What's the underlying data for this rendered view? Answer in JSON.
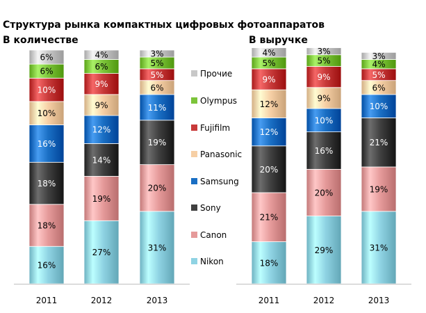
{
  "title": "Структура рынка компактных цифровых фотоаппаратов",
  "chart_data": [
    {
      "type": "bar",
      "stacked": true,
      "subtitle": "В количестве",
      "categories": [
        "2011",
        "2012",
        "2013"
      ],
      "series": [
        {
          "name": "Nikon",
          "values": [
            16,
            27,
            31
          ]
        },
        {
          "name": "Canon",
          "values": [
            18,
            19,
            20
          ]
        },
        {
          "name": "Sony",
          "values": [
            18,
            14,
            19
          ]
        },
        {
          "name": "Samsung",
          "values": [
            16,
            12,
            11
          ]
        },
        {
          "name": "Panasonic",
          "values": [
            10,
            9,
            6
          ]
        },
        {
          "name": "Fujifilm",
          "values": [
            10,
            9,
            5
          ]
        },
        {
          "name": "Olympus",
          "values": [
            6,
            6,
            5
          ]
        },
        {
          "name": "Прочие",
          "values": [
            6,
            4,
            3
          ]
        }
      ],
      "ylim": [
        0,
        100
      ],
      "grid": false
    },
    {
      "type": "bar",
      "stacked": true,
      "subtitle": "В выручке",
      "categories": [
        "2011",
        "2012",
        "2013"
      ],
      "series": [
        {
          "name": "Nikon",
          "values": [
            18,
            29,
            31
          ]
        },
        {
          "name": "Canon",
          "values": [
            21,
            20,
            19
          ]
        },
        {
          "name": "Sony",
          "values": [
            20,
            16,
            21
          ]
        },
        {
          "name": "Samsung",
          "values": [
            12,
            10,
            10
          ]
        },
        {
          "name": "Panasonic",
          "values": [
            12,
            9,
            6
          ]
        },
        {
          "name": "Fujifilm",
          "values": [
            9,
            9,
            5
          ]
        },
        {
          "name": "Olympus",
          "values": [
            5,
            5,
            4
          ]
        },
        {
          "name": "Прочие",
          "values": [
            4,
            3,
            3
          ]
        }
      ],
      "ylim": [
        0,
        100
      ],
      "grid": false
    }
  ],
  "legend": {
    "placement": "center",
    "items": [
      "Прочие",
      "Olympus",
      "Fujifilm",
      "Panasonic",
      "Samsung",
      "Sony",
      "Canon",
      "Nikon"
    ]
  },
  "series_colors": {
    "Nikon": "#8fd3e3",
    "Canon": "#e59a9a",
    "Sony": "#404040",
    "Samsung": "#1a6fc4",
    "Panasonic": "#f6cfa5",
    "Fujifilm": "#c83a3a",
    "Olympus": "#7cc43a",
    "Прочие": "#c8c8c8"
  },
  "label_colors": {
    "Nikon": "#000000",
    "Canon": "#000000",
    "Sony": "#ffffff",
    "Samsung": "#ffffff",
    "Panasonic": "#000000",
    "Fujifilm": "#ffffff",
    "Olympus": "#000000",
    "Прочие": "#000000"
  },
  "label_suffix": "%"
}
